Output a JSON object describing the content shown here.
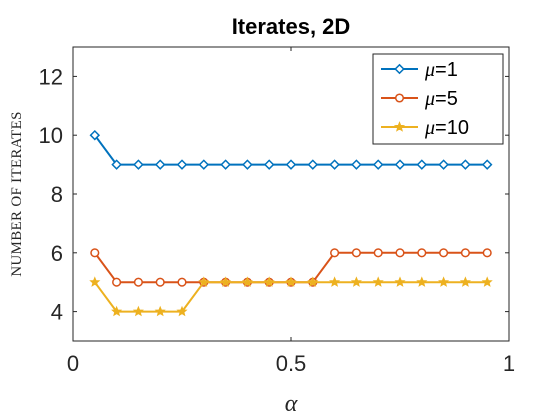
{
  "chart_data": {
    "type": "line",
    "title": "Iterates, 2D",
    "xlabel": "α",
    "ylabel": "NUMBER OF ITERATES",
    "xlim": [
      0,
      1
    ],
    "ylim": [
      3,
      13
    ],
    "xticks": [
      0,
      0.5,
      1
    ],
    "xtick_labels": [
      "0",
      "0.5",
      "1"
    ],
    "yticks": [
      4,
      6,
      8,
      10,
      12
    ],
    "ytick_labels": [
      "4",
      "6",
      "8",
      "10",
      "12"
    ],
    "grid": false,
    "legend_position": "top-right",
    "x": [
      0.05,
      0.1,
      0.15,
      0.2,
      0.25,
      0.3,
      0.35,
      0.4,
      0.45,
      0.5,
      0.55,
      0.6,
      0.65,
      0.7,
      0.75,
      0.8,
      0.85,
      0.9,
      0.95
    ],
    "series": [
      {
        "name": "μ=1",
        "legend_symbol": "μ",
        "legend_value": "=1",
        "color": "#0072BD",
        "marker": "diamond",
        "values": [
          10,
          9,
          9,
          9,
          9,
          9,
          9,
          9,
          9,
          9,
          9,
          9,
          9,
          9,
          9,
          9,
          9,
          9,
          9
        ]
      },
      {
        "name": "μ=5",
        "legend_symbol": "μ",
        "legend_value": "=5",
        "color": "#D95319",
        "marker": "circle",
        "values": [
          6,
          5,
          5,
          5,
          5,
          5,
          5,
          5,
          5,
          5,
          5,
          6,
          6,
          6,
          6,
          6,
          6,
          6,
          6
        ]
      },
      {
        "name": "μ=10",
        "legend_symbol": "μ",
        "legend_value": "=10",
        "color": "#EDB120",
        "marker": "star",
        "values": [
          5,
          4,
          4,
          4,
          4,
          5,
          5,
          5,
          5,
          5,
          5,
          5,
          5,
          5,
          5,
          5,
          5,
          5,
          5
        ]
      }
    ]
  }
}
